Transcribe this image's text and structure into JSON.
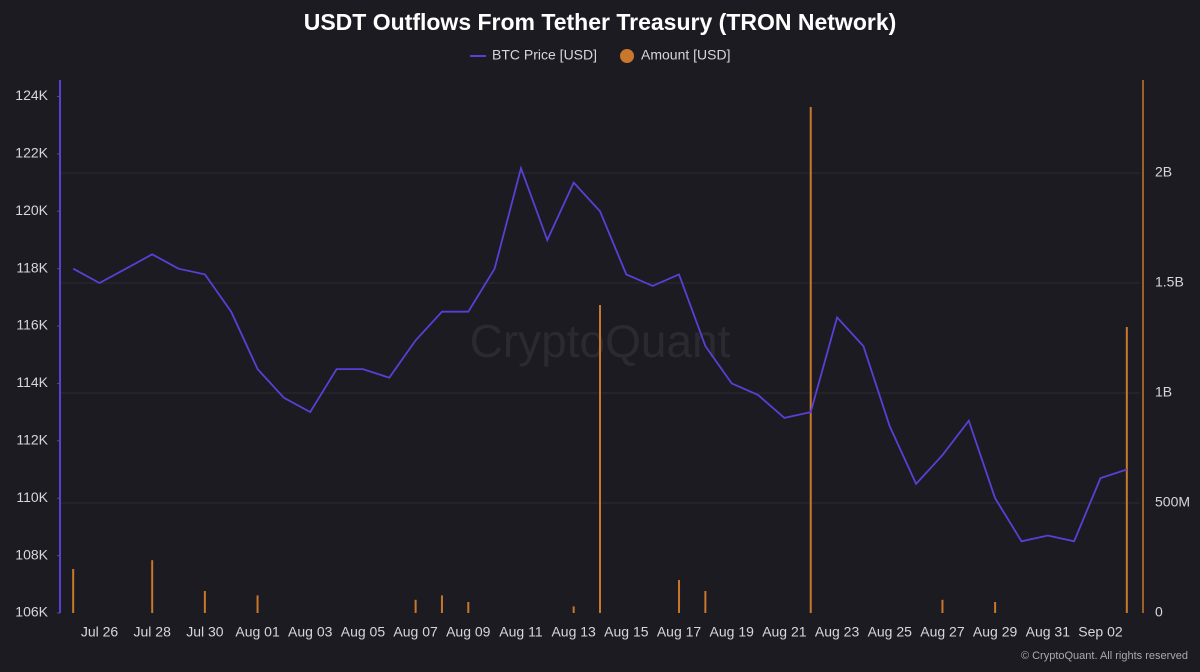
{
  "chart_data": {
    "type": "line-bar",
    "title": "USDT Outflows From Tether Treasury (TRON Network)",
    "watermark": "CryptoQuant",
    "footer": "© CryptoQuant. All rights reserved",
    "categories": [
      null,
      "Jul 26",
      null,
      "Jul 28",
      null,
      "Jul 30",
      null,
      "Aug 01",
      null,
      "Aug 03",
      null,
      "Aug 05",
      null,
      "Aug 07",
      null,
      "Aug 09",
      null,
      "Aug 11",
      null,
      "Aug 13",
      null,
      "Aug 15",
      null,
      "Aug 17",
      null,
      "Aug 19",
      null,
      "Aug 21",
      null,
      "Aug 23",
      null,
      "Aug 25",
      null,
      "Aug 27",
      null,
      "Aug 29",
      null,
      "Aug 31",
      null,
      "Sep 02",
      null
    ],
    "series": [
      {
        "name": "BTC Price [USD]",
        "color": "#5a3fd6",
        "type": "line",
        "values": [
          118000,
          117500,
          118000,
          118500,
          118000,
          117800,
          116500,
          114500,
          113500,
          113000,
          114500,
          114500,
          114200,
          115500,
          116500,
          116500,
          118000,
          121500,
          119000,
          121000,
          120000,
          117800,
          117400,
          117800,
          115300,
          114000,
          113600,
          112800,
          113000,
          116300,
          115300,
          112500,
          110500,
          111500,
          112700,
          110000,
          108500,
          108700,
          108500,
          110700,
          111000
        ]
      },
      {
        "name": "Amount [USD]",
        "color": "#c8772c",
        "type": "bar",
        "axis": "y2",
        "values": [
          200000000,
          0,
          0,
          240000000,
          0,
          100000000,
          0,
          80000000,
          0,
          0,
          0,
          0,
          0,
          60000000,
          80000000,
          50000000,
          0,
          0,
          0,
          30000000,
          1400000000,
          0,
          0,
          150000000,
          100000000,
          0,
          0,
          0,
          2300000000,
          0,
          0,
          0,
          0,
          60000000,
          0,
          50000000,
          0,
          0,
          0,
          0,
          1300000000
        ]
      }
    ],
    "ylim": [
      106000,
      124400
    ],
    "yticks": [
      {
        "value": 106000,
        "label": "106K"
      },
      {
        "value": 108000,
        "label": "108K"
      },
      {
        "value": 110000,
        "label": "110K"
      },
      {
        "value": 112000,
        "label": "112K"
      },
      {
        "value": 114000,
        "label": "114K"
      },
      {
        "value": 116000,
        "label": "116K"
      },
      {
        "value": 118000,
        "label": "118K"
      },
      {
        "value": 120000,
        "label": "120K"
      },
      {
        "value": 122000,
        "label": "122K"
      },
      {
        "value": 124000,
        "label": "124K"
      }
    ],
    "y2lim": [
      0,
      2400000000
    ],
    "y2ticks": [
      0,
      {
        "value": 500000000,
        "label": "500M"
      },
      {
        "value": 1000000000,
        "label": "1B"
      },
      {
        "value": 1500000000,
        "label": "1.5B"
      },
      {
        "value": 2000000000,
        "label": "2B"
      }
    ],
    "grid": true
  }
}
